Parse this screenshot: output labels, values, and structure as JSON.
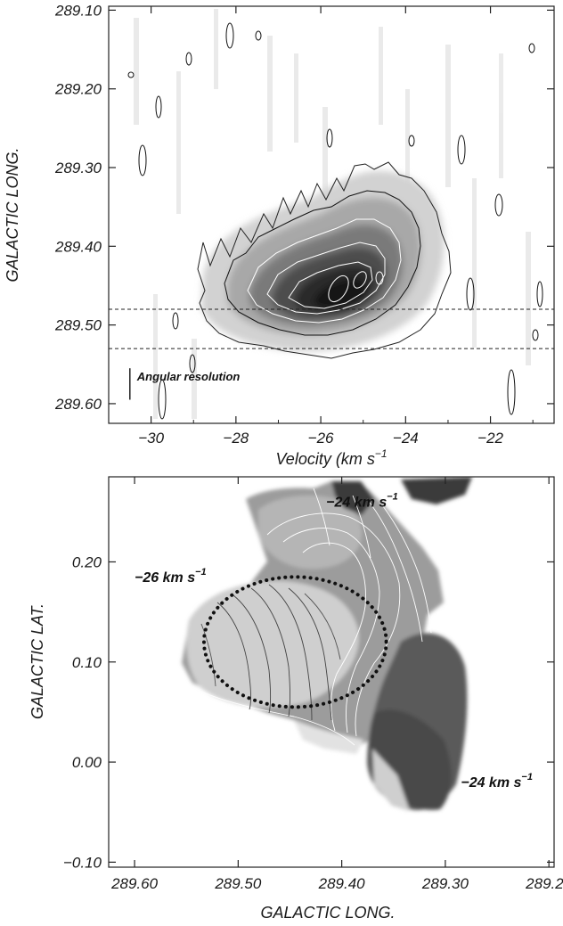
{
  "chart_data": [
    {
      "type": "heatmap",
      "kind": "position-velocity diagram",
      "xlabel": "Velocity  (km s",
      "xlabel_sup": "−1",
      "ylabel": "GALACTIC LONG.",
      "xlim": [
        -31.0,
        -20.5
      ],
      "ylim": [
        289.625,
        289.095
      ],
      "y_inverted": true,
      "x_ticks": [
        -30,
        -28,
        -26,
        -24,
        -22
      ],
      "x_tick_labels": [
        "−30",
        "−28",
        "−26",
        "−24",
        "−22"
      ],
      "y_ticks": [
        289.1,
        289.2,
        289.3,
        289.4,
        289.5,
        289.6
      ],
      "y_tick_labels": [
        "289.10",
        "289.20",
        "289.30",
        "289.40",
        "289.50",
        "289.60"
      ],
      "colormap": "greyscale",
      "peak": {
        "velocity": -25.5,
        "longitude": 289.46
      },
      "contour_levels": 6,
      "hlines": [
        289.48,
        289.53
      ],
      "hline_style": "dashed",
      "annotation": {
        "text": "Angular resolution",
        "x": -30.5,
        "y": 289.575,
        "bar_span": [
          289.555,
          289.595
        ]
      }
    },
    {
      "type": "heatmap",
      "kind": "velocity map",
      "xlabel": "GALACTIC LONG.",
      "ylabel": "GALACTIC LAT.",
      "xlim": [
        289.625,
        289.195
      ],
      "ylim": [
        -0.105,
        0.285
      ],
      "x_inverted": true,
      "x_ticks": [
        289.6,
        289.5,
        289.4,
        289.3,
        289.2
      ],
      "x_tick_labels": [
        "289.60",
        "289.50",
        "289.40",
        "289.30",
        "289.20"
      ],
      "y_ticks": [
        -0.1,
        0.0,
        0.1,
        0.2
      ],
      "y_tick_labels": [
        "−0.10",
        "0.00",
        "0.10",
        "0.20"
      ],
      "colormap": "greyscale",
      "annotations": [
        {
          "text": "−24 km s",
          "sup": "−1",
          "x": 289.415,
          "y": 0.255
        },
        {
          "text": "−26 km s",
          "sup": "−1",
          "x": 289.6,
          "y": 0.18
        },
        {
          "text": "−24 km s",
          "sup": "−1",
          "x": 289.285,
          "y": -0.025
        }
      ],
      "ellipse": {
        "center": [
          289.445,
          0.12
        ],
        "semi_axes": [
          0.088,
          0.065
        ],
        "style": "dotted"
      }
    }
  ]
}
